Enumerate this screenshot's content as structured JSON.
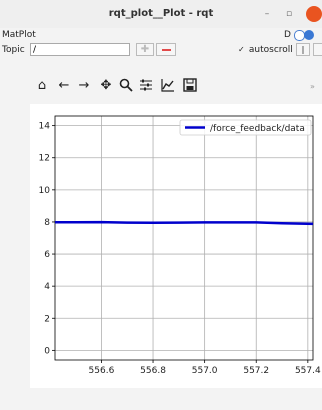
{
  "window": {
    "title": "rqt_plot__Plot - rqt"
  },
  "plugin": {
    "title": "MatPlot",
    "d_label": "D"
  },
  "topic": {
    "label": "Topic",
    "value": "/"
  },
  "autoscroll": {
    "label": "autoscroll",
    "checked": true
  },
  "toolbar": {
    "icons": [
      "home-icon",
      "back-arrow-icon",
      "forward-arrow-icon",
      "pan-icon",
      "zoom-icon",
      "configure-subplots-icon",
      "edit-axis-icon",
      "save-icon"
    ]
  },
  "colors": {
    "line": "#0000cc",
    "close": "#e95420"
  },
  "chart_data": {
    "type": "line",
    "title": "",
    "xlabel": "",
    "ylabel": "",
    "xlim": [
      556.42,
      557.42
    ],
    "ylim": [
      -0.6,
      14.6
    ],
    "xticks": [
      556.6,
      556.8,
      557.0,
      557.2,
      557.4
    ],
    "xtick_labels": [
      "556.6",
      "556.8",
      "557.0",
      "557.2",
      "557.4"
    ],
    "yticks": [
      0,
      2,
      4,
      6,
      8,
      10,
      12,
      14
    ],
    "ytick_labels": [
      "0",
      "2",
      "4",
      "6",
      "8",
      "10",
      "12",
      "14"
    ],
    "grid": true,
    "legend": "top-right",
    "series": [
      {
        "name": "/force_feedback/data",
        "x": [
          556.42,
          556.5,
          556.6,
          556.7,
          556.8,
          556.9,
          557.0,
          557.1,
          557.2,
          557.3,
          557.42
        ],
        "y": [
          7.98,
          7.98,
          7.99,
          7.96,
          7.95,
          7.96,
          7.97,
          7.97,
          7.97,
          7.92,
          7.88
        ]
      }
    ]
  }
}
